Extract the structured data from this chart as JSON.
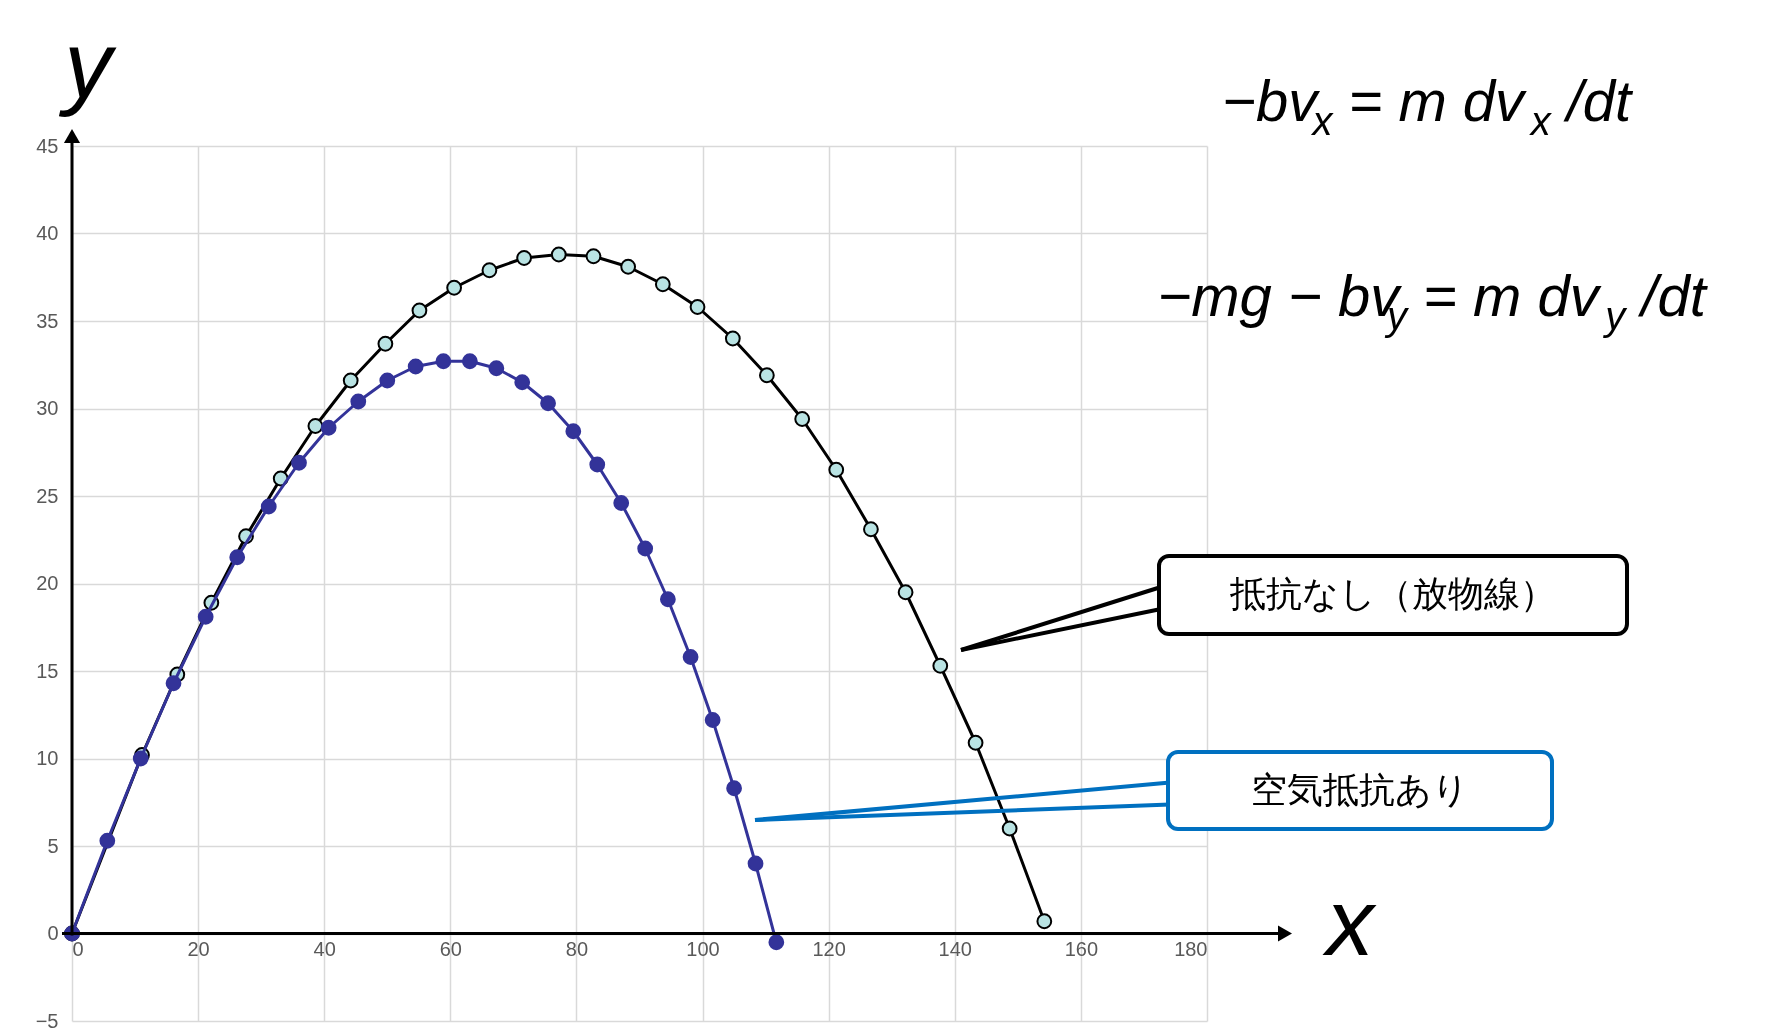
{
  "chart_data": {
    "type": "line",
    "xlabel": "x",
    "ylabel": "y",
    "xlim": [
      0,
      180
    ],
    "xticks": [
      0,
      20,
      40,
      60,
      80,
      100,
      120,
      140,
      160,
      180
    ],
    "ylim": [
      -5,
      45
    ],
    "yticks": [
      -5,
      0,
      5,
      10,
      15,
      20,
      25,
      30,
      35,
      40,
      45
    ],
    "grid": true,
    "marker": "circle",
    "line_style": "solid",
    "series": [
      {
        "name": "抵抗なし（放物線）",
        "color": "#000000",
        "x": [
          0,
          11.1,
          16.7,
          22.1,
          27.6,
          33.1,
          38.6,
          44.2,
          49.7,
          55.1,
          60.6,
          66.2,
          71.7,
          77.2,
          82.7,
          88.2,
          93.7,
          99.2,
          104.8,
          110.2,
          115.8,
          121.2,
          126.7,
          132.2,
          137.7,
          143.3,
          148.7,
          154.2
        ],
        "values": [
          0,
          10.2,
          14.8,
          18.9,
          22.7,
          26.0,
          29.0,
          31.6,
          33.7,
          35.6,
          36.9,
          37.9,
          38.6,
          38.8,
          38.7,
          38.1,
          37.1,
          35.8,
          34.0,
          31.9,
          29.4,
          26.5,
          23.1,
          19.5,
          15.3,
          10.9,
          6.0,
          0.7
        ]
      },
      {
        "name": "空気抵抗あり",
        "color": "#333399",
        "x": [
          0,
          5.6,
          10.9,
          16.1,
          21.2,
          26.2,
          31.2,
          36.0,
          40.7,
          45.4,
          50.0,
          54.5,
          58.9,
          63.1,
          67.3,
          71.4,
          75.5,
          79.5,
          83.3,
          87.1,
          90.9,
          94.5,
          98.1,
          101.6,
          105.0,
          108.4,
          111.7
        ],
        "values": [
          0,
          5.3,
          10.0,
          14.3,
          18.1,
          21.5,
          24.4,
          26.9,
          28.9,
          30.4,
          31.6,
          32.4,
          32.7,
          32.7,
          32.3,
          31.5,
          30.3,
          28.7,
          26.8,
          24.6,
          22.0,
          19.1,
          15.8,
          12.2,
          8.3,
          4.0,
          -0.5
        ]
      }
    ],
    "annotations": [
      "−bv$_{x}$ = m dv$_{x}$/dt",
      "−mg − bv$_{y}$ = m dv$_{y}$/dt"
    ]
  }
}
